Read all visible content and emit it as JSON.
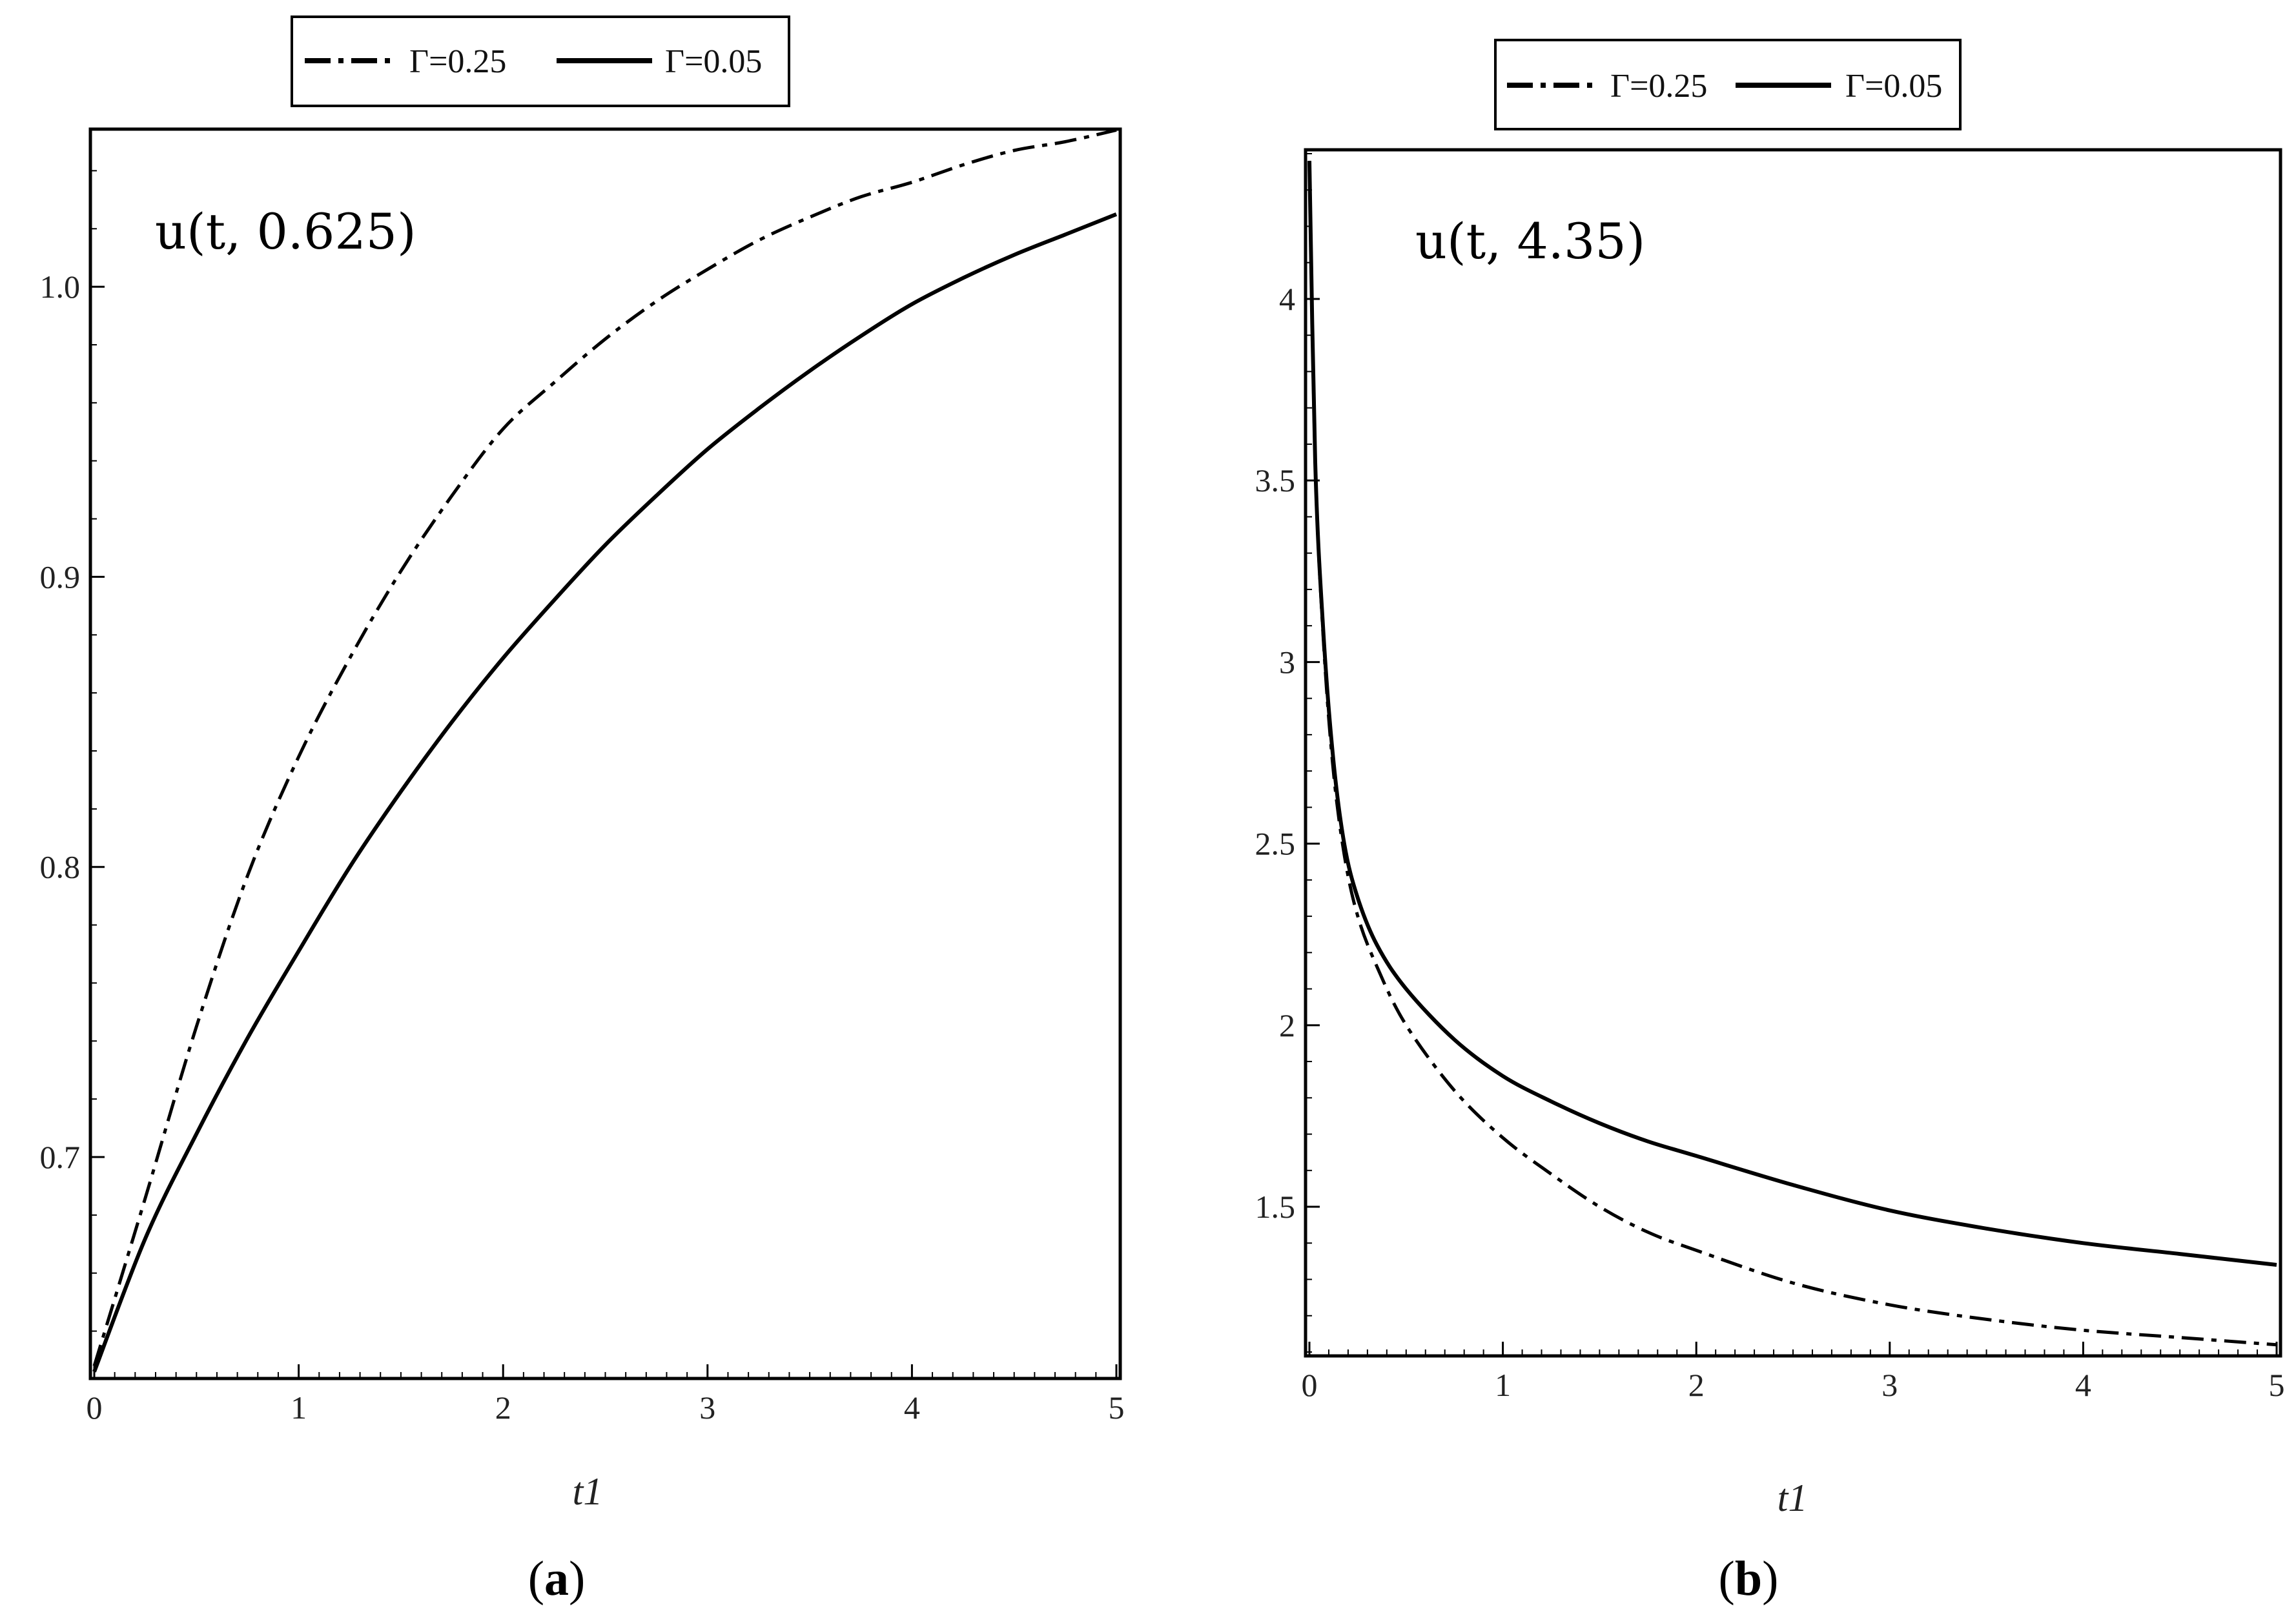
{
  "chart_data": [
    {
      "type": "line",
      "panel_label": "a",
      "annotation": "u(t, 0.625)",
      "xlabel": "t1",
      "ylabel": "",
      "xlim": [
        0,
        5
      ],
      "ylim": [
        0.625,
        1.053
      ],
      "xticks": [
        "0",
        "1",
        "2",
        "3",
        "4",
        "5"
      ],
      "xtick_values": [
        0,
        1,
        2,
        3,
        4,
        5
      ],
      "yticks": [
        "0.7",
        "0.8",
        "0.9",
        "1.0"
      ],
      "ytick_values": [
        0.7,
        0.8,
        0.9,
        1.0
      ],
      "legend": [
        "Γ=0.25",
        "Γ=0.05"
      ],
      "series": [
        {
          "name": "Γ=0.25",
          "style": "dashdot",
          "x": [
            0,
            0.25,
            0.5,
            0.75,
            1,
            1.25,
            1.5,
            1.75,
            2,
            2.25,
            2.5,
            2.75,
            3,
            3.25,
            3.5,
            3.75,
            4,
            4.25,
            4.5,
            4.75,
            5
          ],
          "values": [
            0.628,
            0.686,
            0.745,
            0.797,
            0.838,
            0.872,
            0.902,
            0.928,
            0.951,
            0.967,
            0.982,
            0.995,
            1.006,
            1.016,
            1.024,
            1.031,
            1.036,
            1.042,
            1.047,
            1.05,
            1.054
          ]
        },
        {
          "name": "Γ=0.05",
          "style": "solid",
          "x": [
            0,
            0.25,
            0.5,
            0.75,
            1,
            1.25,
            1.5,
            1.75,
            2,
            2.25,
            2.5,
            2.75,
            3,
            3.25,
            3.5,
            3.75,
            4,
            4.25,
            4.5,
            4.75,
            5
          ],
          "values": [
            0.626,
            0.672,
            0.708,
            0.741,
            0.771,
            0.8,
            0.826,
            0.85,
            0.872,
            0.892,
            0.911,
            0.928,
            0.944,
            0.958,
            0.971,
            0.983,
            0.994,
            1.003,
            1.011,
            1.018,
            1.025
          ]
        }
      ]
    },
    {
      "type": "line",
      "panel_label": "b",
      "annotation": "u(t, 4.35)",
      "xlabel": "t1",
      "ylabel": "",
      "xlim": [
        0,
        5
      ],
      "ylim": [
        1.1,
        4.4
      ],
      "xticks": [
        "0",
        "1",
        "2",
        "3",
        "4",
        "5"
      ],
      "xtick_values": [
        0,
        1,
        2,
        3,
        4,
        5
      ],
      "yticks": [
        "1.5",
        "2",
        "2.5",
        "3",
        "3.5",
        "4"
      ],
      "ytick_values": [
        1.5,
        2,
        2.5,
        3,
        3.5,
        4
      ],
      "legend": [
        "Γ=0.25",
        "Γ=0.05"
      ],
      "series": [
        {
          "name": "Γ=0.25",
          "style": "dashdot",
          "x": [
            0,
            0.03,
            0.07,
            0.12,
            0.18,
            0.25,
            0.35,
            0.5,
            0.75,
            1,
            1.25,
            1.5,
            1.75,
            2,
            2.5,
            3,
            3.5,
            4,
            4.5,
            5
          ],
          "values": [
            4.38,
            3.55,
            3.08,
            2.72,
            2.47,
            2.3,
            2.16,
            2.0,
            1.82,
            1.69,
            1.59,
            1.5,
            1.43,
            1.38,
            1.29,
            1.23,
            1.19,
            1.16,
            1.14,
            1.12
          ]
        },
        {
          "name": "Γ=0.05",
          "style": "solid",
          "x": [
            0,
            0.03,
            0.07,
            0.12,
            0.18,
            0.25,
            0.35,
            0.5,
            0.75,
            1,
            1.25,
            1.5,
            1.75,
            2,
            2.5,
            3,
            3.5,
            4,
            4.5,
            5
          ],
          "values": [
            4.38,
            3.55,
            3.1,
            2.75,
            2.5,
            2.35,
            2.22,
            2.1,
            1.96,
            1.86,
            1.79,
            1.73,
            1.68,
            1.64,
            1.56,
            1.49,
            1.44,
            1.4,
            1.37,
            1.34
          ]
        }
      ]
    }
  ],
  "captions": [
    {
      "open": "(",
      "letter": "a",
      "close": ")"
    },
    {
      "open": "(",
      "letter": "b",
      "close": ")"
    }
  ]
}
